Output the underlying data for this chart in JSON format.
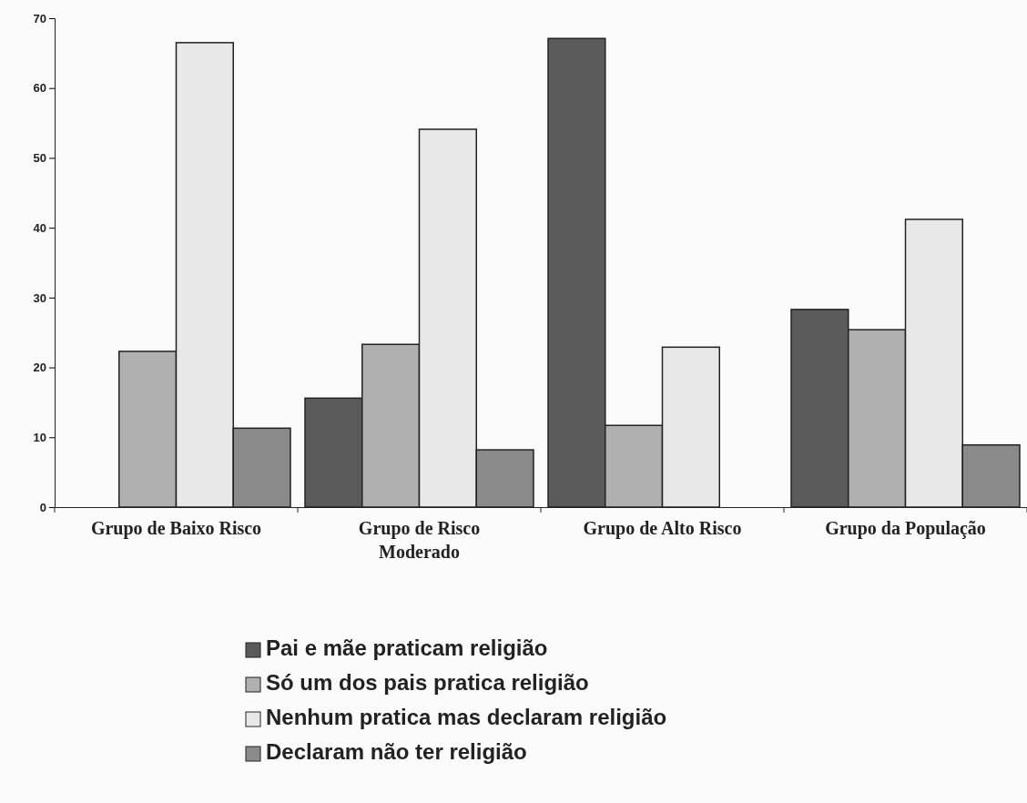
{
  "chart_data": {
    "type": "bar",
    "categories": [
      "Grupo de Baixo Risco",
      "Grupo de Risco Moderado",
      "Grupo de Alto Risco",
      "Grupo da População"
    ],
    "series": [
      {
        "name": "Pai e mãe praticam religião",
        "color": "#5a5a5a",
        "values": [
          null,
          15.6,
          67.1,
          28.3
        ]
      },
      {
        "name": "Só um dos pais pratica religião",
        "color": "#b0b0b0",
        "values": [
          22.3,
          23.3,
          11.7,
          25.4
        ]
      },
      {
        "name": "Nenhum pratica mas declaram religião",
        "color": "#e8e8e8",
        "values": [
          66.5,
          54.1,
          22.9,
          41.2
        ]
      },
      {
        "name": "Declaram não ter religião",
        "color": "#8a8a8a",
        "values": [
          11.3,
          8.2,
          null,
          8.9
        ]
      }
    ],
    "ylim": [
      0,
      70
    ],
    "yticks": [
      0,
      10,
      20,
      30,
      40,
      50,
      60,
      70
    ],
    "grid": false,
    "legend": "bottom"
  }
}
